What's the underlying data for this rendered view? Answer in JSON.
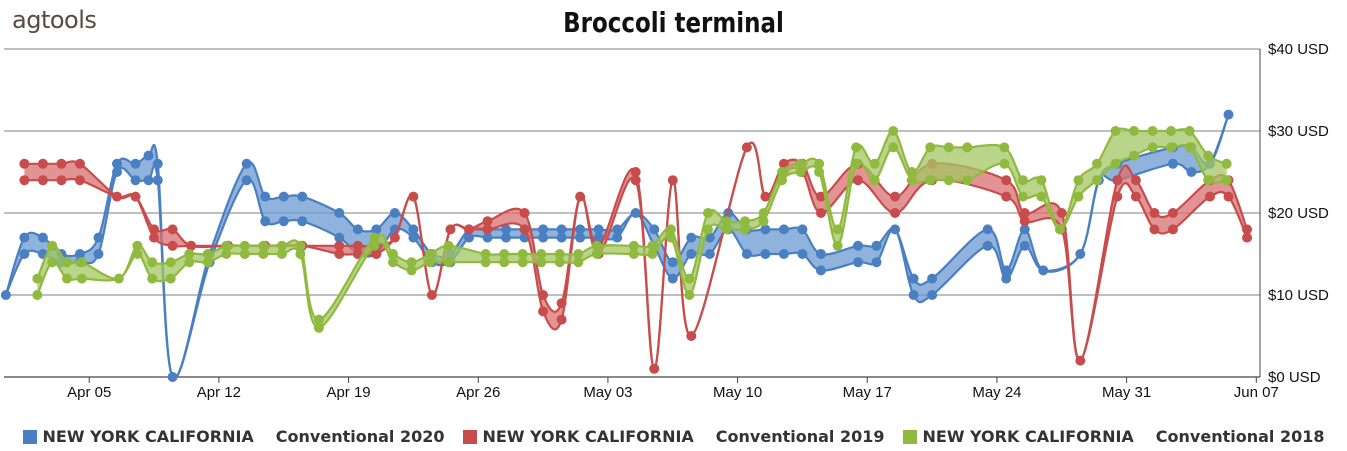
{
  "brand": {
    "logo_text": "agtools"
  },
  "chart_data": {
    "type": "line",
    "title": "Broccoli terminal",
    "xlabel": "",
    "ylabel": "",
    "ylim": [
      0,
      40
    ],
    "y_ticks": [
      {
        "value": 0,
        "label": "$0 USD"
      },
      {
        "value": 10,
        "label": "$10 USD"
      },
      {
        "value": 20,
        "label": "$20 USD"
      },
      {
        "value": 30,
        "label": "$30 USD"
      },
      {
        "value": 40,
        "label": "$40 USD"
      }
    ],
    "x_ticks": [
      {
        "day": 3,
        "label": "Apr 05"
      },
      {
        "day": 10,
        "label": "Apr 12"
      },
      {
        "day": 17,
        "label": "Apr 19"
      },
      {
        "day": 24,
        "label": "Apr 26"
      },
      {
        "day": 31,
        "label": "May 03"
      },
      {
        "day": 38,
        "label": "May 10"
      },
      {
        "day": 45,
        "label": "May 17"
      },
      {
        "day": 52,
        "label": "May 24"
      },
      {
        "day": 59,
        "label": "May 31"
      },
      {
        "day": 66,
        "label": "Jun 07"
      }
    ],
    "grid": true,
    "legend_position": "bottom",
    "series": [
      {
        "name": "NEW YORK CALIFORNIA",
        "label": "Conventional 2020",
        "color": "#4a7fc1",
        "fill": "#6b9ad2",
        "points": [
          [
            -1.5,
            10,
            10
          ],
          [
            -0.5,
            15,
            17
          ],
          [
            0.5,
            15,
            17
          ],
          [
            1.5,
            14,
            15
          ],
          [
            2.5,
            14,
            15
          ],
          [
            3.5,
            15,
            17
          ],
          [
            4.5,
            25,
            26
          ],
          [
            5.5,
            24,
            26
          ],
          [
            6.2,
            24,
            27
          ],
          [
            6.7,
            24,
            26
          ],
          [
            7.5,
            0,
            0
          ],
          [
            9.5,
            14,
            15
          ],
          [
            11.5,
            24,
            26
          ],
          [
            12.5,
            19,
            22
          ],
          [
            13.5,
            19,
            22
          ],
          [
            14.5,
            19,
            22
          ],
          [
            16.5,
            17,
            20
          ],
          [
            17.5,
            15,
            18
          ],
          [
            18.5,
            15,
            18
          ],
          [
            19.5,
            18,
            20
          ],
          [
            20.5,
            17,
            18
          ],
          [
            21.5,
            14,
            15
          ],
          [
            22.5,
            14,
            15
          ],
          [
            23.5,
            17,
            18
          ],
          [
            24.5,
            17,
            18
          ],
          [
            25.5,
            17,
            18
          ],
          [
            26.5,
            17,
            18
          ],
          [
            27.5,
            17,
            18
          ],
          [
            28.5,
            17,
            18
          ],
          [
            29.5,
            17,
            18
          ],
          [
            30.5,
            17,
            18
          ],
          [
            31.5,
            17,
            18
          ],
          [
            32.5,
            20,
            20
          ],
          [
            33.5,
            16,
            18
          ],
          [
            34.5,
            12,
            14
          ],
          [
            35.5,
            15,
            17
          ],
          [
            36.5,
            15,
            17
          ],
          [
            37.5,
            18,
            20
          ],
          [
            38.5,
            15,
            18
          ],
          [
            39.5,
            15,
            18
          ],
          [
            40.5,
            15,
            18
          ],
          [
            41.5,
            15,
            18
          ],
          [
            42.5,
            13,
            15
          ],
          [
            44.5,
            14,
            16
          ],
          [
            45.5,
            14,
            16
          ],
          [
            46.5,
            18,
            18
          ],
          [
            47.5,
            10,
            12
          ],
          [
            48.5,
            10,
            12
          ],
          [
            51.5,
            16,
            18
          ],
          [
            52.5,
            12,
            13
          ],
          [
            53.5,
            16,
            18
          ],
          [
            54.5,
            13,
            13
          ],
          [
            56.5,
            15,
            15
          ],
          [
            57.5,
            24,
            24
          ],
          [
            58.5,
            24,
            26
          ],
          [
            61.5,
            26,
            28
          ],
          [
            62.5,
            25,
            28
          ],
          [
            63.5,
            26,
            26
          ],
          [
            64.5,
            32,
            32
          ]
        ]
      },
      {
        "name": "NEW YORK CALIFORNIA",
        "label": "Conventional 2019",
        "color": "#c94c4c",
        "fill": "#d87070",
        "points": [
          [
            -0.5,
            24,
            26
          ],
          [
            0.5,
            24,
            26
          ],
          [
            1.5,
            24,
            26
          ],
          [
            2.5,
            24,
            26
          ],
          [
            4.5,
            22,
            22
          ],
          [
            5.5,
            22,
            22
          ],
          [
            6.5,
            17,
            18
          ],
          [
            7.5,
            16,
            18
          ],
          [
            8.5,
            16,
            16
          ],
          [
            10.5,
            16,
            16
          ],
          [
            12.5,
            16,
            16
          ],
          [
            14.5,
            16,
            16
          ],
          [
            16.5,
            15,
            16
          ],
          [
            17.5,
            15,
            16
          ],
          [
            18.5,
            15,
            16
          ],
          [
            19.5,
            17,
            17
          ],
          [
            20.5,
            22,
            22
          ],
          [
            21.5,
            10,
            10
          ],
          [
            22.5,
            18,
            18
          ],
          [
            23.5,
            18,
            18
          ],
          [
            24.5,
            18,
            19
          ],
          [
            26.5,
            18,
            20
          ],
          [
            27.5,
            8,
            10
          ],
          [
            28.5,
            7,
            9
          ],
          [
            29.5,
            22,
            22
          ],
          [
            30.5,
            15,
            16
          ],
          [
            32.5,
            24,
            25
          ],
          [
            33.5,
            1,
            1
          ],
          [
            34.5,
            24,
            24
          ],
          [
            35.5,
            5,
            5
          ],
          [
            38.5,
            28,
            28
          ],
          [
            39.5,
            22,
            22
          ],
          [
            40.5,
            25,
            26
          ],
          [
            41.5,
            25,
            26
          ],
          [
            42.5,
            20,
            22
          ],
          [
            44.5,
            24,
            26
          ],
          [
            46.5,
            20,
            22
          ],
          [
            48.5,
            24,
            26
          ],
          [
            52.5,
            22,
            24
          ],
          [
            53.5,
            19,
            20
          ],
          [
            55.5,
            18,
            20
          ],
          [
            56.5,
            2,
            2
          ],
          [
            58.5,
            22,
            24
          ],
          [
            59.5,
            22,
            24
          ],
          [
            60.5,
            18,
            20
          ],
          [
            61.5,
            18,
            20
          ],
          [
            63.5,
            22,
            24
          ],
          [
            64.5,
            22,
            24
          ],
          [
            65.5,
            17,
            18
          ]
        ]
      },
      {
        "name": "NEW YORK CALIFORNIA",
        "label": "Conventional 2018",
        "color": "#8fba3f",
        "fill": "#a3c763",
        "points": [
          [
            0.2,
            10,
            12
          ],
          [
            1.0,
            14,
            16
          ],
          [
            1.8,
            12,
            14
          ],
          [
            2.6,
            12,
            14
          ],
          [
            4.6,
            12,
            12
          ],
          [
            5.6,
            15,
            16
          ],
          [
            6.4,
            12,
            14
          ],
          [
            7.4,
            12,
            14
          ],
          [
            8.4,
            14,
            15
          ],
          [
            9.4,
            14,
            15
          ],
          [
            10.4,
            15,
            16
          ],
          [
            11.4,
            15,
            16
          ],
          [
            12.4,
            15,
            16
          ],
          [
            13.4,
            15,
            16
          ],
          [
            14.4,
            15,
            16
          ],
          [
            15.4,
            6,
            7
          ],
          [
            18.4,
            16,
            17
          ],
          [
            19.4,
            14,
            15
          ],
          [
            20.4,
            13,
            14
          ],
          [
            21.4,
            14,
            15
          ],
          [
            22.4,
            14,
            16
          ],
          [
            24.4,
            14,
            15
          ],
          [
            25.4,
            14,
            15
          ],
          [
            26.4,
            14,
            15
          ],
          [
            27.4,
            14,
            15
          ],
          [
            28.4,
            14,
            15
          ],
          [
            29.4,
            14,
            15
          ],
          [
            30.4,
            15,
            16
          ],
          [
            32.4,
            15,
            16
          ],
          [
            33.4,
            15,
            16
          ],
          [
            34.4,
            17,
            18
          ],
          [
            35.4,
            10,
            12
          ],
          [
            36.4,
            18,
            20
          ],
          [
            37.4,
            18,
            19
          ],
          [
            38.4,
            18,
            19
          ],
          [
            39.4,
            19,
            20
          ],
          [
            40.4,
            24,
            25
          ],
          [
            41.4,
            25,
            26
          ],
          [
            42.4,
            25,
            26
          ],
          [
            43.4,
            16,
            18
          ],
          [
            44.4,
            26,
            28
          ],
          [
            45.4,
            24,
            26
          ],
          [
            46.4,
            28,
            30
          ],
          [
            47.4,
            24,
            25
          ],
          [
            48.4,
            24,
            28
          ],
          [
            49.4,
            24,
            28
          ],
          [
            50.4,
            24,
            28
          ],
          [
            52.4,
            26,
            28
          ],
          [
            53.4,
            22,
            24
          ],
          [
            54.4,
            22,
            24
          ],
          [
            55.4,
            18,
            18
          ],
          [
            56.4,
            22,
            24
          ],
          [
            57.4,
            24,
            26
          ],
          [
            58.4,
            26,
            30
          ],
          [
            59.4,
            27,
            30
          ],
          [
            60.4,
            28,
            30
          ],
          [
            61.4,
            28,
            30
          ],
          [
            62.4,
            28,
            30
          ],
          [
            63.4,
            24,
            27
          ],
          [
            64.4,
            24,
            26
          ]
        ]
      }
    ]
  }
}
